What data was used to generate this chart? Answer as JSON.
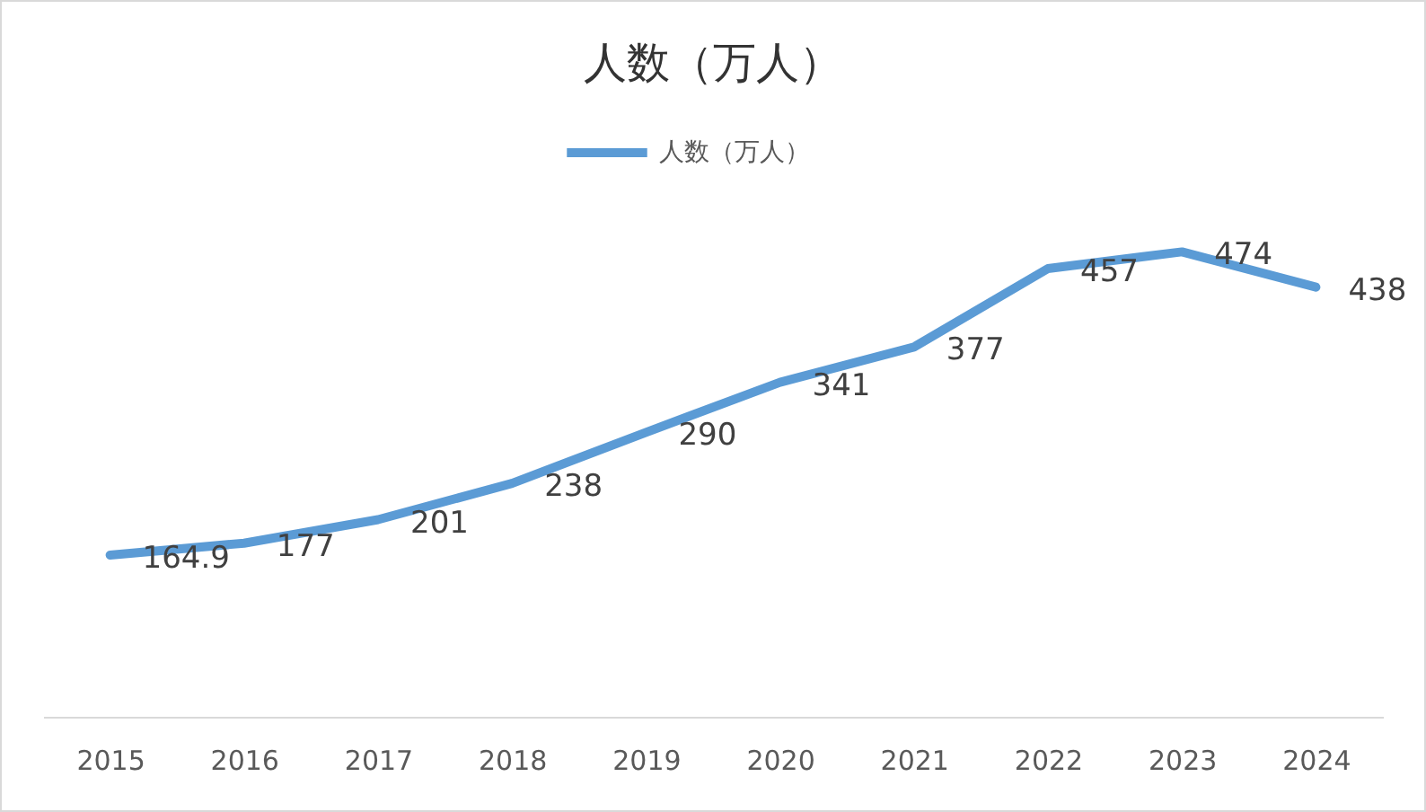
{
  "chart_data": {
    "type": "line",
    "title": "人数（万人）",
    "categories": [
      "2015",
      "2016",
      "2017",
      "2018",
      "2019",
      "2020",
      "2021",
      "2022",
      "2023",
      "2024"
    ],
    "series": [
      {
        "name": "人数（万人）",
        "color": "#5b9bd5",
        "values": [
          164.9,
          177,
          201,
          238,
          290,
          341,
          377,
          457,
          474,
          438
        ]
      }
    ],
    "data_labels": true,
    "legend": "top",
    "tick_labels": "x"
  }
}
